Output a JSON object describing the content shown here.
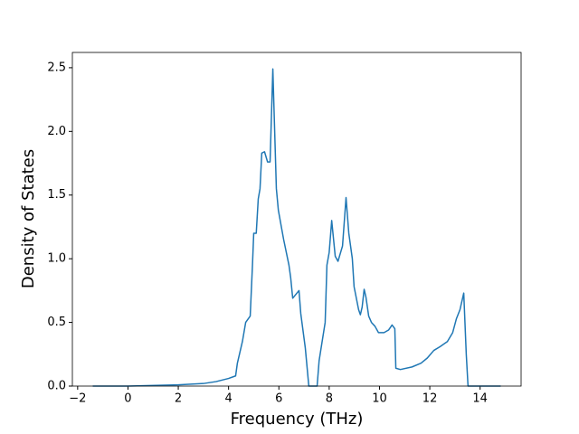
{
  "chart_data": {
    "type": "line",
    "xlabel": "Frequency (THz)",
    "ylabel": "Density of States",
    "xlim": [
      -2.21,
      15.63
    ],
    "ylim": [
      0,
      2.62
    ],
    "xticks": [
      {
        "value": -2,
        "label": "−2"
      },
      0,
      2,
      4,
      6,
      8,
      10,
      12,
      14
    ],
    "yticks": [
      {
        "value": 0,
        "label": "0.0"
      },
      {
        "value": 0.5,
        "label": "0.5"
      },
      {
        "value": 1,
        "label": "1.0"
      },
      {
        "value": 1.5,
        "label": "1.5"
      },
      {
        "value": 2,
        "label": "2.0"
      },
      {
        "value": 2.5,
        "label": "2.5"
      }
    ],
    "series": [
      {
        "color": "#1f77b4",
        "x": [
          -1.4,
          0,
          2,
          3,
          3.5,
          4,
          4.28,
          4.35,
          4.55,
          4.68,
          4.86,
          4.95,
          5.0,
          5.1,
          5.18,
          5.25,
          5.32,
          5.43,
          5.55,
          5.65,
          5.76,
          5.9,
          5.98,
          6.19,
          6.4,
          6.47,
          6.55,
          6.8,
          6.87,
          7.05,
          7.19,
          7.52,
          7.6,
          7.84,
          7.91,
          8.0,
          8.1,
          8.24,
          8.35,
          8.53,
          8.67,
          8.78,
          8.92,
          8.99,
          9.17,
          9.24,
          9.31,
          9.39,
          9.46,
          9.57,
          9.68,
          9.82,
          9.96,
          10.18,
          10.36,
          10.5,
          10.61,
          10.65,
          10.83,
          11.29,
          11.65,
          11.9,
          12.16,
          12.41,
          12.7,
          12.91,
          13.06,
          13.2,
          13.35,
          13.45,
          13.52,
          14.82
        ],
        "values": [
          0,
          0,
          0.01,
          0.02,
          0.035,
          0.06,
          0.08,
          0.18,
          0.35,
          0.5,
          0.55,
          0.95,
          1.2,
          1.2,
          1.47,
          1.55,
          1.83,
          1.84,
          1.76,
          1.76,
          2.49,
          1.55,
          1.38,
          1.15,
          0.95,
          0.85,
          0.69,
          0.75,
          0.57,
          0.3,
          0,
          0,
          0.2,
          0.5,
          0.95,
          1.05,
          1.3,
          1.02,
          0.98,
          1.1,
          1.48,
          1.2,
          1.0,
          0.78,
          0.6,
          0.56,
          0.62,
          0.76,
          0.7,
          0.55,
          0.5,
          0.47,
          0.42,
          0.42,
          0.44,
          0.48,
          0.45,
          0.14,
          0.13,
          0.15,
          0.18,
          0.22,
          0.28,
          0.31,
          0.35,
          0.42,
          0.53,
          0.6,
          0.73,
          0.25,
          0,
          0
        ]
      }
    ]
  }
}
